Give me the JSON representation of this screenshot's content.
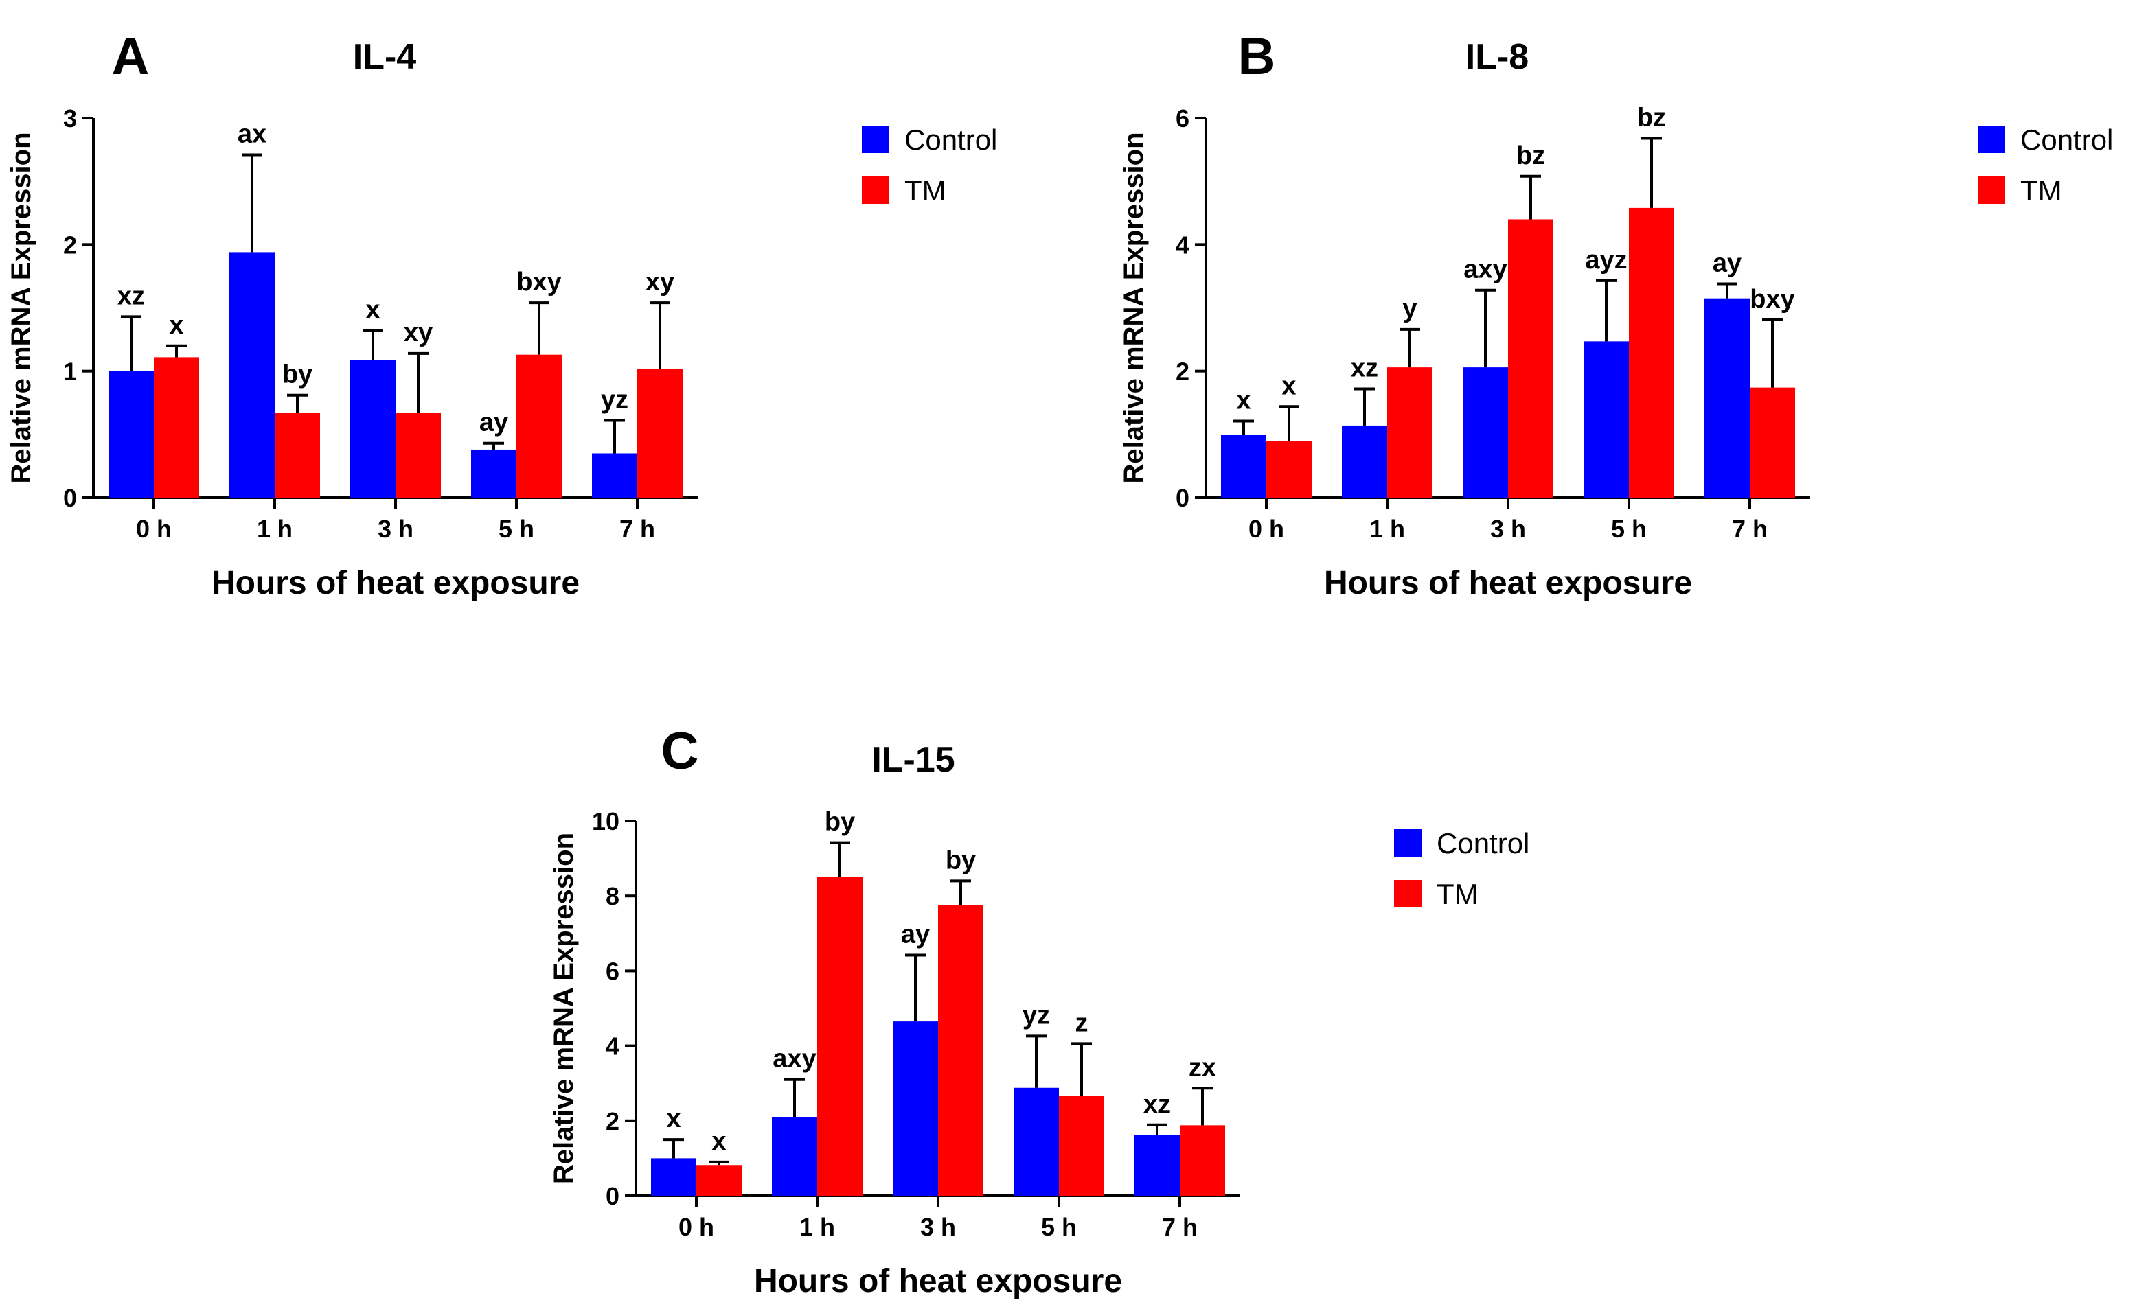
{
  "figure": {
    "colors": {
      "control": "#0000ff",
      "tm": "#ff0000"
    },
    "legend": [
      "Control",
      "TM"
    ]
  },
  "chart_data": [
    {
      "type": "bar",
      "panel": "A",
      "title": "IL-4",
      "xlabel": "Hours of heat exposure",
      "ylabel": "Relative mRNA Expression",
      "ylim": [
        0,
        3
      ],
      "yticks": [
        0,
        1,
        2,
        3
      ],
      "categories": [
        "0 h",
        "1 h",
        "3 h",
        "5 h",
        "7 h"
      ],
      "series": [
        {
          "name": "Control",
          "values": [
            1.0,
            1.94,
            1.09,
            0.38,
            0.35
          ],
          "errors": [
            0.43,
            0.77,
            0.23,
            0.05,
            0.26
          ],
          "labels": [
            "xz",
            "ax",
            "x",
            "ay",
            "yz"
          ]
        },
        {
          "name": "TM",
          "values": [
            1.11,
            0.67,
            0.67,
            1.13,
            1.02
          ],
          "errors": [
            0.09,
            0.14,
            0.47,
            0.41,
            0.52
          ],
          "labels": [
            "x",
            "by",
            "xy",
            "bxy",
            "xy"
          ]
        }
      ]
    },
    {
      "type": "bar",
      "panel": "B",
      "title": "IL-8",
      "xlabel": "Hours of heat exposure",
      "ylabel": "Relative mRNA Expression",
      "ylim": [
        0,
        6
      ],
      "yticks": [
        0,
        2,
        4,
        6
      ],
      "categories": [
        "0 h",
        "1 h",
        "3 h",
        "5 h",
        "7 h"
      ],
      "series": [
        {
          "name": "Control",
          "values": [
            0.99,
            1.14,
            2.06,
            2.47,
            3.15
          ],
          "errors": [
            0.22,
            0.58,
            1.22,
            0.96,
            0.23
          ],
          "labels": [
            "x",
            "xz",
            "axy",
            "ayz",
            "ay"
          ]
        },
        {
          "name": "TM",
          "values": [
            0.9,
            2.06,
            4.4,
            4.58,
            1.74
          ],
          "errors": [
            0.54,
            0.6,
            0.68,
            1.1,
            1.07
          ],
          "labels": [
            "x",
            "y",
            "bz",
            "bz",
            "bxy"
          ]
        }
      ]
    },
    {
      "type": "bar",
      "panel": "C",
      "title": "IL-15",
      "xlabel": "Hours of heat exposure",
      "ylabel": "Relative mRNA Expression",
      "ylim": [
        0,
        10
      ],
      "yticks": [
        0,
        2,
        4,
        6,
        8,
        10
      ],
      "categories": [
        "0 h",
        "1 h",
        "3 h",
        "5 h",
        "7 h"
      ],
      "series": [
        {
          "name": "Control",
          "values": [
            1.0,
            2.1,
            4.65,
            2.88,
            1.62
          ],
          "errors": [
            0.5,
            1.0,
            1.77,
            1.38,
            0.27
          ],
          "labels": [
            "x",
            "axy",
            "ay",
            "yz",
            "xz"
          ]
        },
        {
          "name": "TM",
          "values": [
            0.82,
            8.5,
            7.75,
            2.67,
            1.88
          ],
          "errors": [
            0.08,
            0.92,
            0.65,
            1.39,
            0.99
          ],
          "labels": [
            "x",
            "by",
            "by",
            "z",
            "zx"
          ]
        }
      ]
    }
  ]
}
